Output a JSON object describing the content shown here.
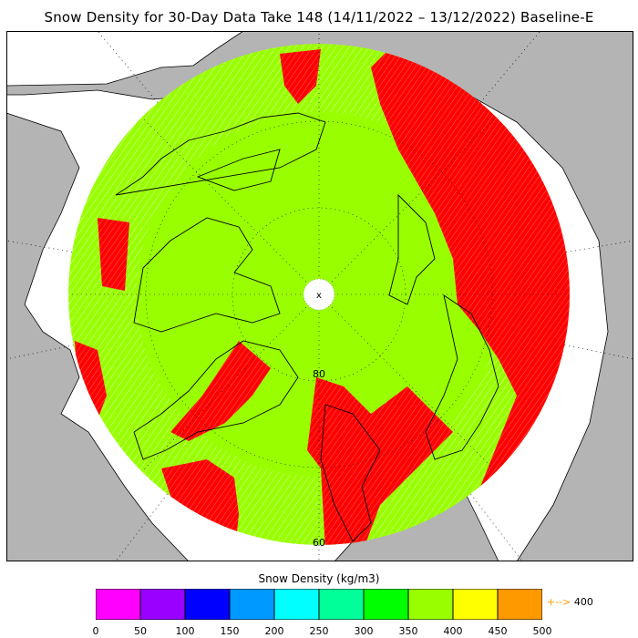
{
  "title": "Snow Density for 30-Day Data Take 148 (14/11/2022 – 13/12/2022) Baseline-E",
  "map": {
    "projection": "north-polar-stereographic",
    "latitude_labels": [
      "80",
      "60"
    ],
    "pole_marker": "x",
    "colors": {
      "ocean": "#ffffff",
      "land": "#b4b4b4",
      "density_350_400": "#99ff00",
      "density_over_400": "#ff0000",
      "coastline": "#000000",
      "graticule": "#000000"
    }
  },
  "legend": {
    "title": "Snow Density (kg/m3)",
    "ticks": [
      "0",
      "50",
      "100",
      "150",
      "200",
      "250",
      "300",
      "350",
      "400",
      "450",
      "500"
    ],
    "colors": [
      "#ff00ff",
      "#9900ff",
      "#0000ff",
      "#0099ff",
      "#00ffff",
      "#00ff99",
      "#00ff00",
      "#99ff00",
      "#ffff00",
      "#ff9900"
    ],
    "overflow_note": "400",
    "overflow_arrow": "+-->"
  }
}
